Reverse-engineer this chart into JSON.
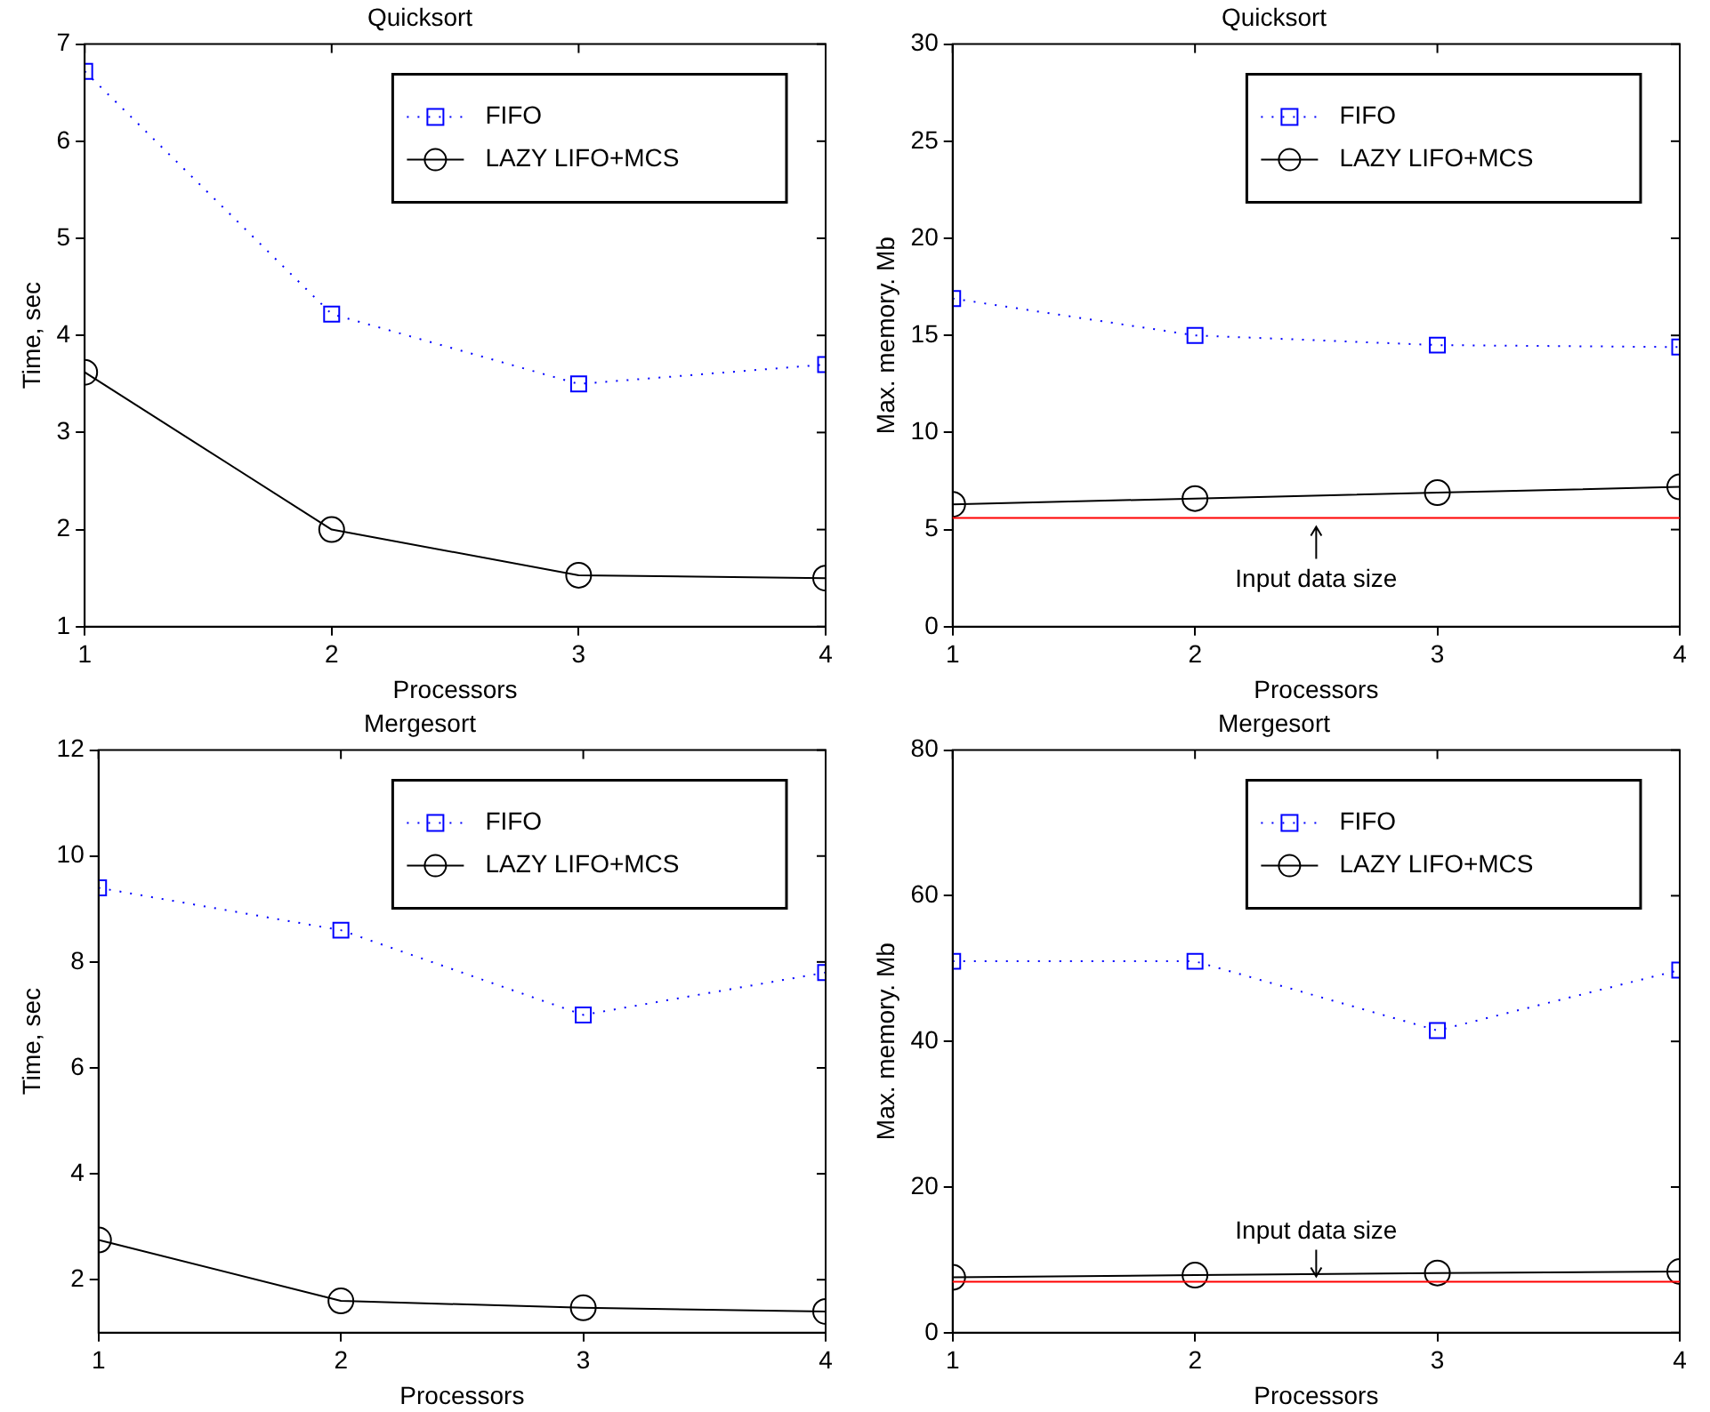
{
  "chart_data": [
    {
      "type": "line",
      "title": "Quicksort",
      "xlabel": "Processors",
      "ylabel": "Time, sec",
      "x": [
        1,
        2,
        3,
        4
      ],
      "xlim": [
        1,
        4
      ],
      "xticks": [
        1,
        2,
        3,
        4
      ],
      "ylim": [
        1,
        7
      ],
      "yticks": [
        1,
        2,
        3,
        4,
        5,
        6,
        7
      ],
      "grid": false,
      "legend": "top right",
      "series": [
        {
          "name": "FIFO",
          "color": "#0000ff",
          "marker": "square",
          "line_style": "dotted",
          "values": [
            6.72,
            4.22,
            3.5,
            3.7
          ]
        },
        {
          "name": "LAZY LIFO+MCS",
          "color": "#000000",
          "marker": "circle",
          "line_style": "solid",
          "values": [
            3.62,
            2.0,
            1.53,
            1.5
          ]
        }
      ]
    },
    {
      "type": "line",
      "title": "Quicksort",
      "xlabel": "Processors",
      "ylabel": "Max. memory. Mb",
      "x": [
        1,
        2,
        3,
        4
      ],
      "xlim": [
        1,
        4
      ],
      "xticks": [
        1,
        2,
        3,
        4
      ],
      "ylim": [
        0,
        30
      ],
      "yticks": [
        0,
        5,
        10,
        15,
        20,
        25,
        30
      ],
      "grid": false,
      "legend": "top right",
      "series": [
        {
          "name": "FIFO",
          "color": "#0000ff",
          "marker": "square",
          "line_style": "dotted",
          "values": [
            16.9,
            15.0,
            14.5,
            14.4
          ]
        },
        {
          "name": "LAZY LIFO+MCS",
          "color": "#000000",
          "marker": "circle",
          "line_style": "solid",
          "values": [
            6.3,
            6.6,
            6.9,
            7.2
          ]
        }
      ],
      "ref_lines": [
        {
          "axis": "y",
          "value": 5.6,
          "label": "Input data size",
          "color": "#ff0000"
        }
      ]
    },
    {
      "type": "line",
      "title": "Mergesort",
      "xlabel": "Processors",
      "ylabel": "Time, sec",
      "x": [
        1,
        2,
        3,
        4
      ],
      "xlim": [
        1,
        4
      ],
      "xticks": [
        1,
        2,
        3,
        4
      ],
      "ylim": [
        1,
        12
      ],
      "yticks": [
        2,
        4,
        6,
        8,
        10,
        12
      ],
      "grid": false,
      "legend": "top right",
      "series": [
        {
          "name": "FIFO",
          "color": "#0000ff",
          "marker": "square",
          "line_style": "dotted",
          "values": [
            9.4,
            8.6,
            7.0,
            7.8
          ]
        },
        {
          "name": "LAZY LIFO+MCS",
          "color": "#000000",
          "marker": "circle",
          "line_style": "solid",
          "values": [
            2.75,
            1.6,
            1.47,
            1.4
          ]
        }
      ]
    },
    {
      "type": "line",
      "title": "Mergesort",
      "xlabel": "Processors",
      "ylabel": "Max. memory. Mb",
      "x": [
        1,
        2,
        3,
        4
      ],
      "xlim": [
        1,
        4
      ],
      "xticks": [
        1,
        2,
        3,
        4
      ],
      "ylim": [
        0,
        80
      ],
      "yticks": [
        0,
        20,
        40,
        60,
        80
      ],
      "grid": false,
      "legend": "top right",
      "series": [
        {
          "name": "FIFO",
          "color": "#0000ff",
          "marker": "square",
          "line_style": "dotted",
          "values": [
            51,
            51,
            41.5,
            49.8
          ]
        },
        {
          "name": "LAZY LIFO+MCS",
          "color": "#000000",
          "marker": "circle",
          "line_style": "solid",
          "values": [
            7.6,
            7.9,
            8.2,
            8.4
          ]
        }
      ],
      "ref_lines": [
        {
          "axis": "y",
          "value": 7.0,
          "label": "Input data size",
          "color": "#ff0000"
        }
      ]
    }
  ]
}
